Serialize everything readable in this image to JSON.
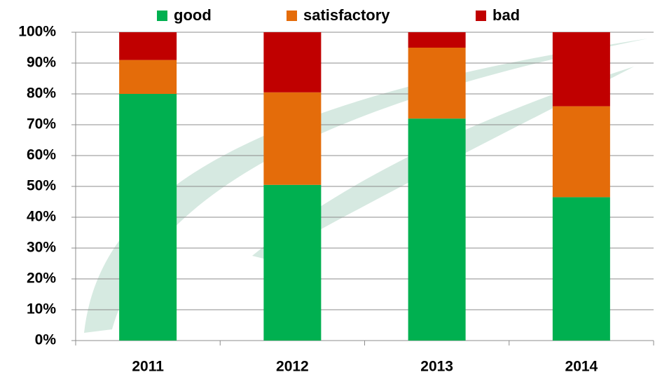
{
  "chart_data": {
    "type": "stacked_bar",
    "categories": [
      "2011",
      "2012",
      "2013",
      "2014"
    ],
    "series": [
      {
        "name": "good",
        "color": "#00b050",
        "values": [
          80,
          50.5,
          72,
          46.5
        ]
      },
      {
        "name": "satisfactory",
        "color": "#e46c0a",
        "values": [
          11,
          30,
          23,
          29.5
        ]
      },
      {
        "name": "bad",
        "color": "#c00000",
        "values": [
          9,
          19.5,
          5,
          24
        ]
      }
    ],
    "ylim": [
      0,
      100
    ],
    "yticks": [
      {
        "value": 0,
        "label": "0%"
      },
      {
        "value": 10,
        "label": "10%"
      },
      {
        "value": 20,
        "label": "20%"
      },
      {
        "value": 30,
        "label": "30%"
      },
      {
        "value": 40,
        "label": "40%"
      },
      {
        "value": 50,
        "label": "50%"
      },
      {
        "value": 60,
        "label": "60%"
      },
      {
        "value": 70,
        "label": "70%"
      },
      {
        "value": 80,
        "label": "80%"
      },
      {
        "value": 90,
        "label": "90%"
      },
      {
        "value": 100,
        "label": "100%"
      }
    ],
    "grid": true,
    "legend": "top"
  }
}
